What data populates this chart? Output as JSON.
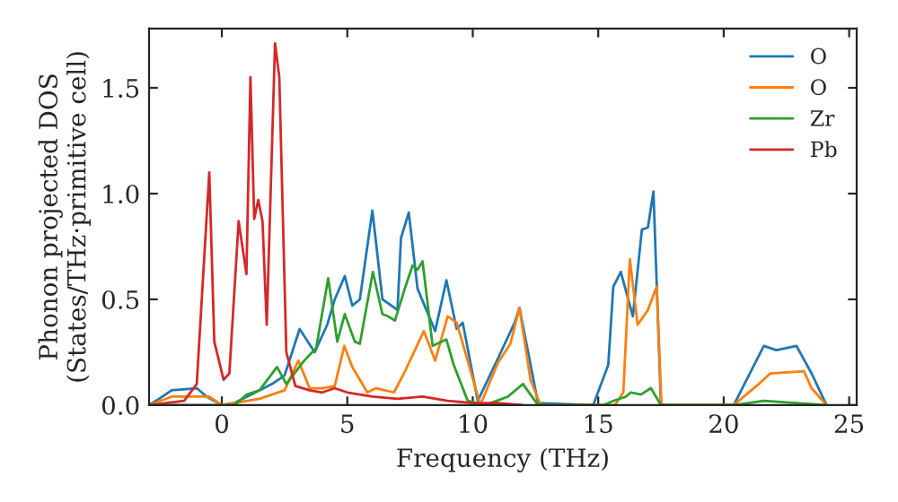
{
  "chart_data": {
    "type": "line",
    "xlabel": "Frequency (THz)",
    "ylabel": "Phonon projected DOS\n(States/THz·primitive cell)",
    "xlim": [
      -2.9,
      25.3
    ],
    "ylim": [
      0,
      1.78
    ],
    "xticks": [
      0,
      5,
      10,
      15,
      20,
      25
    ],
    "yticks": [
      {
        "value": 0,
        "label": "0.0"
      },
      {
        "value": 0.5,
        "label": "0.5"
      },
      {
        "value": 1.0,
        "label": "1.0"
      },
      {
        "value": 1.5,
        "label": "1.5"
      }
    ],
    "grid": false,
    "legend": "top right",
    "marker": "none",
    "line_style": "solid",
    "series": [
      {
        "name": "O",
        "color": "#1f77b4",
        "x": [
          -2.9,
          -2.5,
          -2.0,
          -1.0,
          -0.6,
          0.0,
          0.5,
          1.0,
          1.5,
          2.0,
          2.5,
          3.1,
          3.7,
          4.2,
          4.5,
          4.9,
          5.2,
          5.5,
          6.0,
          6.4,
          7.0,
          7.14,
          7.45,
          7.8,
          8.5,
          8.95,
          9.36,
          9.6,
          10.2,
          11.0,
          11.67,
          11.86,
          12.6,
          14.8,
          15.4,
          15.6,
          15.9,
          16.38,
          16.74,
          16.98,
          17.2,
          17.5,
          20.4,
          21.6,
          22.1,
          22.9,
          23.5,
          24.1
        ],
        "values": [
          0.0,
          0.03,
          0.07,
          0.08,
          0.04,
          0.0,
          0.01,
          0.04,
          0.07,
          0.1,
          0.14,
          0.36,
          0.25,
          0.38,
          0.5,
          0.61,
          0.47,
          0.5,
          0.92,
          0.5,
          0.45,
          0.79,
          0.91,
          0.55,
          0.35,
          0.59,
          0.36,
          0.39,
          0.02,
          0.22,
          0.39,
          0.46,
          0.01,
          0.0,
          0.19,
          0.56,
          0.63,
          0.42,
          0.83,
          0.84,
          1.01,
          0.0,
          0.0,
          0.28,
          0.26,
          0.28,
          0.15,
          0.0
        ]
      },
      {
        "name": "O",
        "color": "#ff7f0e",
        "x": [
          -2.9,
          -2.0,
          -0.5,
          0.0,
          1.5,
          2.5,
          3.05,
          3.5,
          4.0,
          4.5,
          4.88,
          5.2,
          5.8,
          6.14,
          6.86,
          7.3,
          8.05,
          8.5,
          9.0,
          9.36,
          9.7,
          10.3,
          11.0,
          11.5,
          11.86,
          12.3,
          12.7,
          15.66,
          16.0,
          16.26,
          16.57,
          16.98,
          17.33,
          17.52,
          20.4,
          21.4,
          21.86,
          23.2,
          23.5,
          24.1
        ],
        "values": [
          0.0,
          0.04,
          0.04,
          0.0,
          0.03,
          0.07,
          0.21,
          0.08,
          0.08,
          0.09,
          0.28,
          0.18,
          0.06,
          0.08,
          0.06,
          0.16,
          0.35,
          0.21,
          0.42,
          0.39,
          0.25,
          0.0,
          0.2,
          0.29,
          0.46,
          0.12,
          0.0,
          0.0,
          0.06,
          0.69,
          0.38,
          0.45,
          0.56,
          0.0,
          0.0,
          0.1,
          0.15,
          0.16,
          0.08,
          0.0
        ]
      },
      {
        "name": "Zr",
        "color": "#2ca02c",
        "x": [
          -2.9,
          0.5,
          1.0,
          1.5,
          2.2,
          2.57,
          3.28,
          3.76,
          4.24,
          4.6,
          4.9,
          5.3,
          5.5,
          6.02,
          6.4,
          6.62,
          6.9,
          7.29,
          7.6,
          7.8,
          8.0,
          8.4,
          8.95,
          9.24,
          9.8,
          10.5,
          11.4,
          12.0,
          12.6,
          15.2,
          15.6,
          16.1,
          16.3,
          16.7,
          17.1,
          17.5,
          20.4,
          21.6,
          24.1
        ],
        "values": [
          0.0,
          0.0,
          0.05,
          0.07,
          0.18,
          0.1,
          0.21,
          0.27,
          0.6,
          0.3,
          0.43,
          0.3,
          0.29,
          0.63,
          0.43,
          0.42,
          0.4,
          0.55,
          0.66,
          0.64,
          0.68,
          0.28,
          0.31,
          0.19,
          0.02,
          0.0,
          0.04,
          0.1,
          0.0,
          0.0,
          0.02,
          0.04,
          0.06,
          0.05,
          0.08,
          0.0,
          0.0,
          0.02,
          0.0
        ]
      },
      {
        "name": "Pb",
        "color": "#d62728",
        "x": [
          -2.9,
          -1.5,
          -1.0,
          -0.8,
          -0.5,
          -0.3,
          0.07,
          0.3,
          0.67,
          0.98,
          1.14,
          1.29,
          1.45,
          1.62,
          1.79,
          2.12,
          2.29,
          2.57,
          2.93,
          3.5,
          4.0,
          4.5,
          5.0,
          5.5,
          6.0,
          7.0,
          8.0,
          9.0,
          10.0,
          11.0,
          12.0
        ],
        "values": [
          0.0,
          0.02,
          0.1,
          0.5,
          1.1,
          0.3,
          0.12,
          0.15,
          0.87,
          0.62,
          1.55,
          0.88,
          0.97,
          0.87,
          0.38,
          1.71,
          1.55,
          0.25,
          0.09,
          0.07,
          0.06,
          0.08,
          0.06,
          0.05,
          0.04,
          0.03,
          0.04,
          0.02,
          0.01,
          0.01,
          0.0
        ]
      }
    ]
  }
}
